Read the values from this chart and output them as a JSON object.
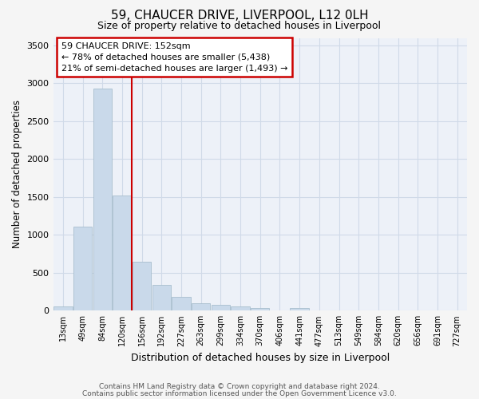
{
  "title1": "59, CHAUCER DRIVE, LIVERPOOL, L12 0LH",
  "title2": "Size of property relative to detached houses in Liverpool",
  "xlabel": "Distribution of detached houses by size in Liverpool",
  "ylabel": "Number of detached properties",
  "categories": [
    "13sqm",
    "49sqm",
    "84sqm",
    "120sqm",
    "156sqm",
    "192sqm",
    "227sqm",
    "263sqm",
    "299sqm",
    "334sqm",
    "370sqm",
    "406sqm",
    "441sqm",
    "477sqm",
    "513sqm",
    "549sqm",
    "584sqm",
    "620sqm",
    "656sqm",
    "691sqm",
    "727sqm"
  ],
  "values": [
    55,
    1110,
    2930,
    1520,
    650,
    340,
    185,
    95,
    75,
    55,
    30,
    0,
    35,
    5,
    0,
    0,
    0,
    0,
    0,
    0,
    0
  ],
  "bar_color": "#c9d9ea",
  "bar_edge_color": "#a8bece",
  "grid_color": "#d0dae8",
  "background_color": "#edf1f8",
  "fig_background": "#f5f5f5",
  "annotation_line1": "59 CHAUCER DRIVE: 152sqm",
  "annotation_line2": "← 78% of detached houses are smaller (5,438)",
  "annotation_line3": "21% of semi-detached houses are larger (1,493) →",
  "vline_color": "#cc0000",
  "box_color": "#cc0000",
  "ylim": [
    0,
    3600
  ],
  "yticks": [
    0,
    500,
    1000,
    1500,
    2000,
    2500,
    3000,
    3500
  ],
  "vline_pos": 3.5,
  "footnote1": "Contains HM Land Registry data © Crown copyright and database right 2024.",
  "footnote2": "Contains public sector information licensed under the Open Government Licence v3.0."
}
